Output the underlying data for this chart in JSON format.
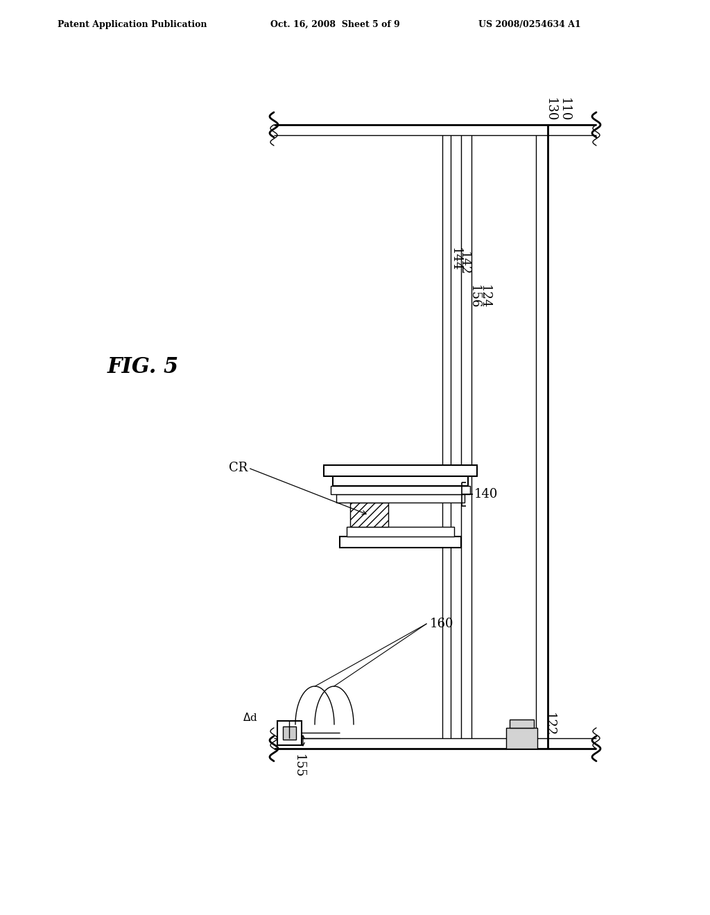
{
  "bg_color": "#ffffff",
  "line_color": "#000000",
  "header_left": "Patent Application Publication",
  "header_center": "Oct. 16, 2008  Sheet 5 of 9",
  "header_right": "US 2008/0254634 A1",
  "fig_label": "FIG. 5",
  "label_fontsize": 13,
  "header_fontsize": 9
}
